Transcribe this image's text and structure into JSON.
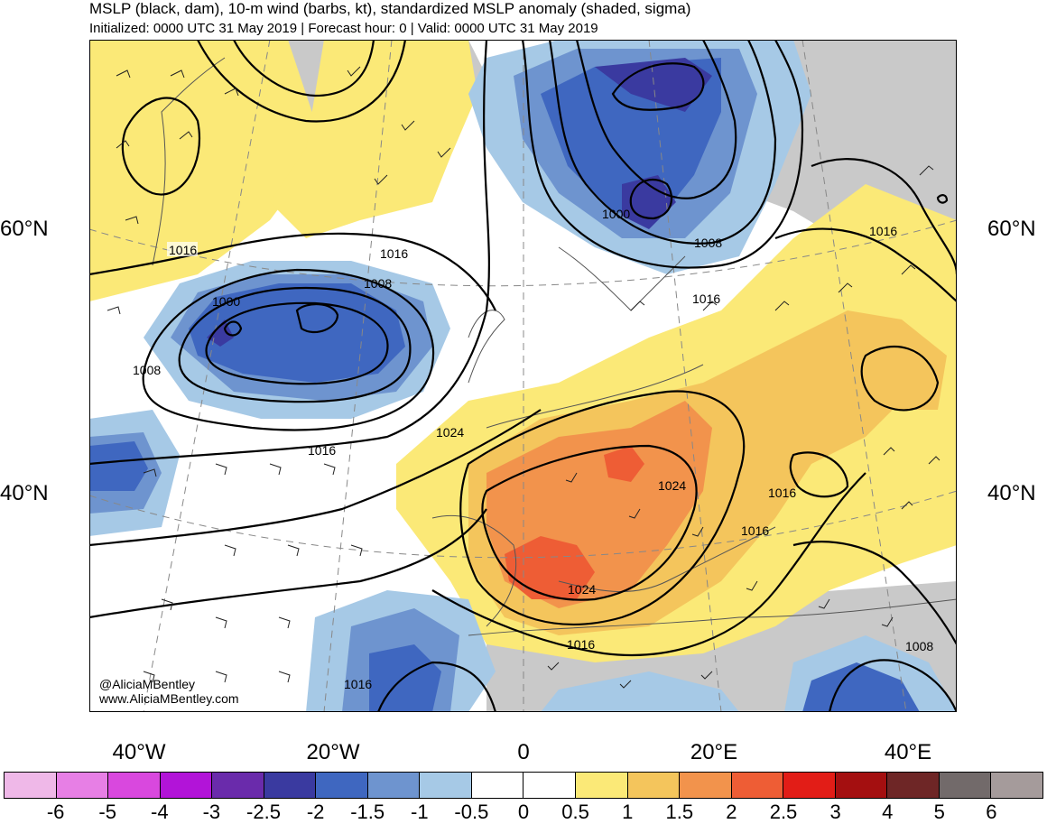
{
  "title": "MSLP (black, dam), 10-m wind (barbs, kt), standardized MSLP anomaly (shaded, sigma)",
  "subtitle": "Initialized: 0000 UTC 31 May 2019 | Forecast hour: 0 | Valid: 0000 UTC 31 May 2019",
  "lat_labels": [
    "60°N",
    "40°N"
  ],
  "lon_labels": [
    "40°W",
    "20°W",
    "0",
    "20°E",
    "40°E"
  ],
  "credits": [
    "@AliciaMBentley",
    "www.AliciaMBentley.com"
  ],
  "contour_labels": [
    "1016",
    "1016",
    "1008",
    "1000",
    "1008",
    "1016",
    "1000",
    "1008",
    "1016",
    "1016",
    "1024",
    "1024",
    "1016",
    "1016",
    "1024",
    "1016",
    "1008",
    "1016"
  ],
  "colorbar": {
    "colors": [
      "#efb8e8",
      "#e77fe5",
      "#d948de",
      "#b214d8",
      "#6a2bab",
      "#3a3aa0",
      "#3f67c0",
      "#6e94cf",
      "#a6c9e6",
      "#ffffff",
      "#ffffff",
      "#fbe977",
      "#f4c55c",
      "#f2934c",
      "#ee5d35",
      "#e21d17",
      "#a40f10",
      "#6e2626",
      "#726a6a",
      "#a59b9b"
    ],
    "labels": [
      "-6",
      "-5",
      "-4",
      "-3",
      "-2.5",
      "-2",
      "-1.5",
      "-1",
      "-0.5",
      "0",
      "0.5",
      "1",
      "1.5",
      "2",
      "2.5",
      "3",
      "4",
      "5",
      "6"
    ]
  }
}
